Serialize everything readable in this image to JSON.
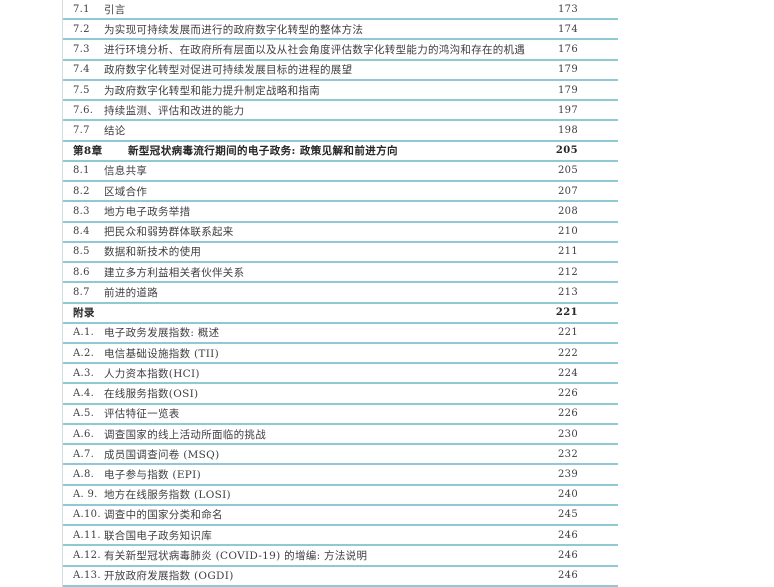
{
  "colors": {
    "rule": "#8fcad4",
    "text": "#3e3e3e",
    "bold_text": "#262626",
    "left_border": "#d2dcdf",
    "background": "#ffffff"
  },
  "toc": {
    "rows": [
      {
        "num": "7.1",
        "title": "引言",
        "page": "173",
        "bold": false
      },
      {
        "num": "7.2",
        "title": "为实现可持续发展而进行的政府数字化转型的整体方法",
        "page": "174",
        "bold": false
      },
      {
        "num": "7.3",
        "title": "进行环境分析、在政府所有层面以及从社会角度评估数字化转型能力的鸿沟和存在的机遇",
        "page": "176",
        "bold": false
      },
      {
        "num": "7.4",
        "title": "政府数字化转型对促进可持续发展目标的进程的展望",
        "page": "179",
        "bold": false
      },
      {
        "num": "7.5",
        "title": "为政府数字化转型和能力提升制定战略和指南",
        "page": "179",
        "bold": false
      },
      {
        "num": "7.6.",
        "title": "持续监测、评估和改进的能力",
        "page": "197",
        "bold": false
      },
      {
        "num": "7.7",
        "title": "结论",
        "page": "198",
        "bold": false
      },
      {
        "num": "第8章",
        "title": "新型冠状病毒流行期间的电子政务: 政策见解和前进方向",
        "page": "205",
        "bold": true
      },
      {
        "num": "8.1",
        "title": "信息共享",
        "page": "205",
        "bold": false
      },
      {
        "num": "8.2",
        "title": "区域合作",
        "page": "207",
        "bold": false
      },
      {
        "num": "8.3",
        "title": "地方电子政务举措",
        "page": "208",
        "bold": false
      },
      {
        "num": "8.4",
        "title": "把民众和弱势群体联系起来",
        "page": "210",
        "bold": false
      },
      {
        "num": "8.5",
        "title": "数据和新技术的使用",
        "page": "211",
        "bold": false
      },
      {
        "num": "8.6",
        "title": "建立多方利益相关者伙伴关系",
        "page": "212",
        "bold": false
      },
      {
        "num": "8.7",
        "title": "前进的道路",
        "page": "213",
        "bold": false
      },
      {
        "num": "附录",
        "title": "",
        "page": "221",
        "bold": true
      },
      {
        "num": "A.1.",
        "title": "电子政务发展指数: 概述",
        "page": "221",
        "bold": false
      },
      {
        "num": "A.2.",
        "title": "电信基础设施指数 (TII)",
        "page": "222",
        "bold": false
      },
      {
        "num": "A.3.",
        "title": "人力资本指数(HCI)",
        "page": "224",
        "bold": false
      },
      {
        "num": "A.4.",
        "title": "在线服务指数(OSI)",
        "page": "226",
        "bold": false
      },
      {
        "num": "A.5.",
        "title": "评估特征一览表",
        "page": "226",
        "bold": false
      },
      {
        "num": "A.6.",
        "title": "调查国家的线上活动所面临的挑战",
        "page": "230",
        "bold": false
      },
      {
        "num": "A.7.",
        "title": "成员国调查问卷 (MSQ)",
        "page": "232",
        "bold": false
      },
      {
        "num": "A.8.",
        "title": "电子参与指数 (EPI)",
        "page": "239",
        "bold": false
      },
      {
        "num": "A. 9.",
        "title": "地方在线服务指数 (LOSI)",
        "page": "240",
        "bold": false
      },
      {
        "num": "A.10.",
        "title": "调查中的国家分类和命名",
        "page": "245",
        "bold": false
      },
      {
        "num": "A.11.",
        "title": "联合国电子政务知识库",
        "page": "246",
        "bold": false
      },
      {
        "num": "A.12.",
        "title": "有关新型冠状病毒肺炎 (COVID-19) 的增编: 方法说明",
        "page": "246",
        "bold": false
      },
      {
        "num": "A.13.",
        "title": "开放政府发展指数 (OGDI)",
        "page": "246",
        "bold": false
      }
    ]
  }
}
